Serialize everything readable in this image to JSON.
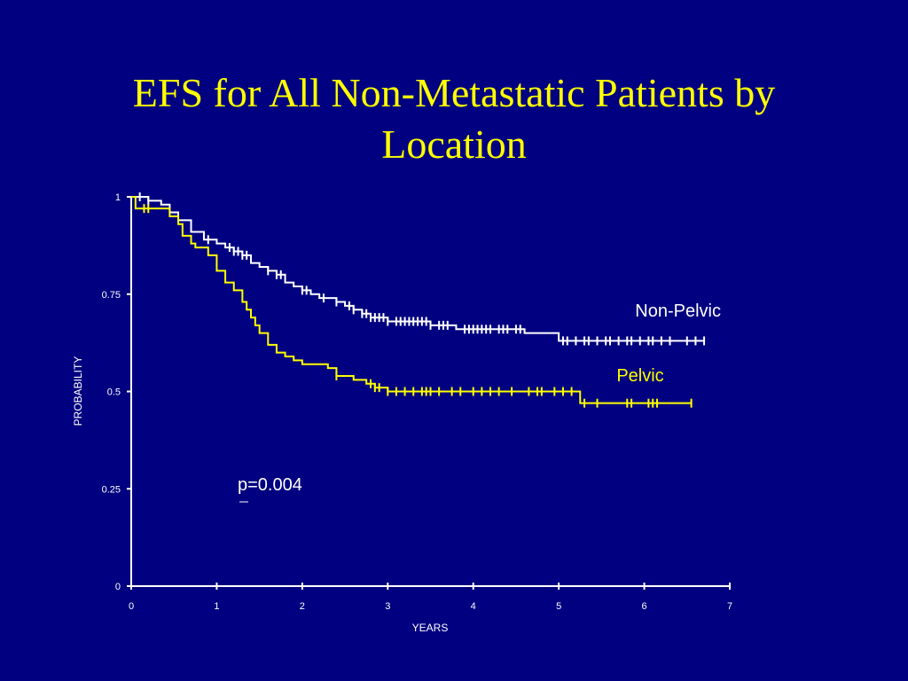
{
  "slide": {
    "title_line1": "EFS for All Non-Metastatic Patients by",
    "title_line2": "Location"
  },
  "colors": {
    "background": "#000080",
    "title": "#ffff00",
    "axis": "#ffffff",
    "non_pelvic": "#ffffff",
    "pelvic": "#ffff00"
  },
  "chart_data": {
    "type": "line",
    "title": "",
    "xlabel": "YEARS",
    "ylabel": "PROBABILITY",
    "xlim": [
      0,
      7
    ],
    "ylim": [
      0,
      1
    ],
    "x_ticks": [
      "0",
      "1",
      "2",
      "3",
      "4",
      "5",
      "6",
      "7"
    ],
    "y_ticks": [
      "0",
      "0.25",
      "0.5",
      "0.75",
      "1"
    ],
    "grid": false,
    "annotation": "p=0.004",
    "series": [
      {
        "name": "Non-Pelvic",
        "color": "#ffffff",
        "steps": [
          [
            0,
            1.0
          ],
          [
            0.2,
            0.99
          ],
          [
            0.35,
            0.98
          ],
          [
            0.45,
            0.96
          ],
          [
            0.55,
            0.94
          ],
          [
            0.7,
            0.91
          ],
          [
            0.85,
            0.89
          ],
          [
            1.0,
            0.88
          ],
          [
            1.1,
            0.87
          ],
          [
            1.2,
            0.86
          ],
          [
            1.3,
            0.85
          ],
          [
            1.4,
            0.83
          ],
          [
            1.5,
            0.82
          ],
          [
            1.6,
            0.81
          ],
          [
            1.7,
            0.8
          ],
          [
            1.8,
            0.78
          ],
          [
            1.9,
            0.77
          ],
          [
            2.0,
            0.76
          ],
          [
            2.1,
            0.75
          ],
          [
            2.2,
            0.74
          ],
          [
            2.4,
            0.73
          ],
          [
            2.5,
            0.72
          ],
          [
            2.6,
            0.71
          ],
          [
            2.7,
            0.7
          ],
          [
            2.8,
            0.69
          ],
          [
            3.0,
            0.68
          ],
          [
            3.5,
            0.67
          ],
          [
            3.8,
            0.66
          ],
          [
            4.6,
            0.65
          ],
          [
            5.0,
            0.63
          ],
          [
            6.7,
            0.63
          ]
        ],
        "censor_x": [
          0.1,
          0.2,
          0.9,
          1.15,
          1.2,
          1.25,
          1.3,
          1.35,
          1.6,
          1.7,
          1.75,
          2.0,
          2.05,
          2.25,
          2.4,
          2.55,
          2.6,
          2.7,
          2.75,
          2.8,
          2.85,
          2.9,
          2.95,
          3.0,
          3.1,
          3.15,
          3.2,
          3.25,
          3.3,
          3.35,
          3.4,
          3.45,
          3.5,
          3.6,
          3.65,
          3.7,
          3.9,
          3.95,
          4.0,
          4.05,
          4.1,
          4.15,
          4.2,
          4.3,
          4.35,
          4.4,
          4.5,
          4.55,
          5.05,
          5.1,
          5.2,
          5.3,
          5.35,
          5.45,
          5.55,
          5.6,
          5.7,
          5.8,
          5.85,
          5.95,
          6.05,
          6.1,
          6.2,
          6.3,
          6.5,
          6.6,
          6.7
        ]
      },
      {
        "name": "Pelvic",
        "color": "#ffff00",
        "steps": [
          [
            0,
            1.0
          ],
          [
            0.05,
            0.97
          ],
          [
            0.45,
            0.95
          ],
          [
            0.55,
            0.93
          ],
          [
            0.6,
            0.9
          ],
          [
            0.7,
            0.88
          ],
          [
            0.75,
            0.87
          ],
          [
            0.9,
            0.85
          ],
          [
            1.0,
            0.81
          ],
          [
            1.1,
            0.78
          ],
          [
            1.2,
            0.76
          ],
          [
            1.3,
            0.73
          ],
          [
            1.35,
            0.71
          ],
          [
            1.4,
            0.69
          ],
          [
            1.45,
            0.67
          ],
          [
            1.5,
            0.65
          ],
          [
            1.6,
            0.62
          ],
          [
            1.7,
            0.6
          ],
          [
            1.8,
            0.59
          ],
          [
            1.9,
            0.58
          ],
          [
            2.0,
            0.57
          ],
          [
            2.3,
            0.56
          ],
          [
            2.4,
            0.54
          ],
          [
            2.6,
            0.53
          ],
          [
            2.75,
            0.52
          ],
          [
            2.85,
            0.51
          ],
          [
            3.0,
            0.5
          ],
          [
            5.25,
            0.47
          ],
          [
            6.55,
            0.47
          ]
        ],
        "censor_x": [
          0.15,
          0.2,
          2.4,
          2.8,
          2.85,
          2.9,
          3.0,
          3.1,
          3.2,
          3.3,
          3.4,
          3.45,
          3.5,
          3.6,
          3.75,
          3.85,
          4.0,
          4.1,
          4.2,
          4.3,
          4.45,
          4.65,
          4.75,
          4.8,
          4.95,
          5.05,
          5.15,
          5.3,
          5.45,
          5.8,
          5.85,
          6.05,
          6.1,
          6.15,
          6.55
        ]
      }
    ]
  }
}
